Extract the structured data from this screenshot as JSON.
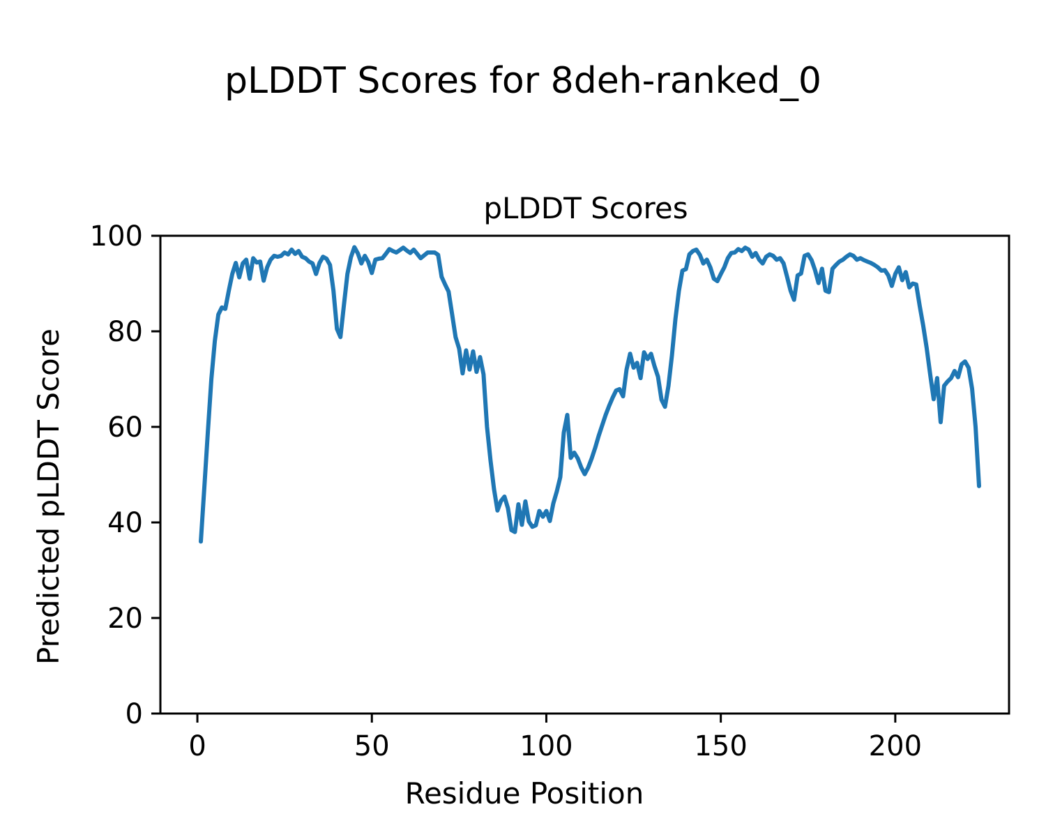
{
  "figure": {
    "title": "pLDDT Scores for 8deh-ranked_0",
    "background": "#ffffff"
  },
  "chart_data": {
    "type": "line",
    "title": "pLDDT Scores",
    "xlabel": "Residue Position",
    "ylabel": "Predicted pLDDT Score",
    "x_ticks": [
      0,
      50,
      100,
      150,
      200
    ],
    "y_ticks": [
      0,
      20,
      40,
      60,
      80,
      100
    ],
    "xlim": [
      -10.6,
      232.6
    ],
    "ylim": [
      0,
      100
    ],
    "grid": false,
    "legend_position": "none",
    "line_color": "#1f77b4",
    "axis_color": "#000000",
    "series": [
      {
        "name": "pLDDT",
        "x_start": 1,
        "x_step": 1,
        "values": [
          36,
          47.5,
          59,
          70,
          78,
          83.5,
          85,
          84.7,
          88.5,
          92,
          94.3,
          91.3,
          94.2,
          95,
          91,
          95.3,
          94.4,
          94.6,
          90.6,
          93.4,
          95,
          95.8,
          95.6,
          95.8,
          96.5,
          96.1,
          97.1,
          96.2,
          96.8,
          95.6,
          95.3,
          94.6,
          94.2,
          92,
          94.3,
          95.6,
          95.2,
          93.9,
          88.5,
          80.5,
          78.8,
          85.5,
          92,
          95.5,
          97.6,
          96.3,
          94.2,
          95.8,
          94.5,
          92.2,
          95,
          95.2,
          95.3,
          96.2,
          97.2,
          96.8,
          96.5,
          97,
          97.5,
          96.9,
          96.4,
          97.1,
          96.2,
          95.3,
          95.9,
          96.5,
          96.5,
          96.5,
          96,
          91.4,
          89.8,
          88.3,
          83.6,
          78.8,
          76.4,
          71.2,
          76,
          72,
          75.8,
          71.5,
          74.6,
          71,
          60,
          53,
          47,
          42.5,
          44.5,
          45.4,
          43,
          38.4,
          38,
          43.8,
          39.5,
          44.4,
          40.2,
          39.1,
          39.4,
          42.4,
          41.2,
          42.4,
          40.3,
          44,
          46.5,
          49.5,
          58.8,
          62.5,
          53.5,
          54.6,
          53.4,
          51.5,
          50.1,
          51.5,
          53.4,
          55.6,
          58.1,
          60.3,
          62.5,
          64.4,
          66.1,
          67.6,
          67.9,
          66.4,
          72,
          75.3,
          72.4,
          73.4,
          70.2,
          75.6,
          74.2,
          75.3,
          72.7,
          70.5,
          65.7,
          64.2,
          68.6,
          75,
          82.6,
          88.5,
          92.7,
          93,
          96.1,
          96.8,
          97.1,
          96,
          94.2,
          95,
          93.4,
          91,
          90.5,
          92,
          93.4,
          95.3,
          96.4,
          96.5,
          97.2,
          96.8,
          97.5,
          97.1,
          95.6,
          96.4,
          95,
          94.2,
          95.6,
          96.1,
          95.8,
          95,
          95.3,
          94.2,
          91.4,
          88.5,
          86.6,
          91.7,
          92.1,
          95.8,
          96.1,
          94.9,
          92.8,
          90.1,
          93.1,
          88.5,
          88.2,
          93.1,
          93.9,
          94.6,
          95,
          95.6,
          96.1,
          95.8,
          95,
          95.3,
          94.9,
          94.6,
          94.3,
          93.9,
          93.4,
          92.7,
          92.8,
          91.7,
          89.5,
          92,
          93.4,
          90.7,
          92.4,
          89.2,
          90,
          89.8,
          85.3,
          81.2,
          76.5,
          71,
          65.8,
          70.2,
          61,
          68.6,
          69.5,
          70.2,
          71.7,
          70.4,
          73.1,
          73.7,
          72.4,
          68,
          60,
          47.6
        ]
      }
    ]
  }
}
